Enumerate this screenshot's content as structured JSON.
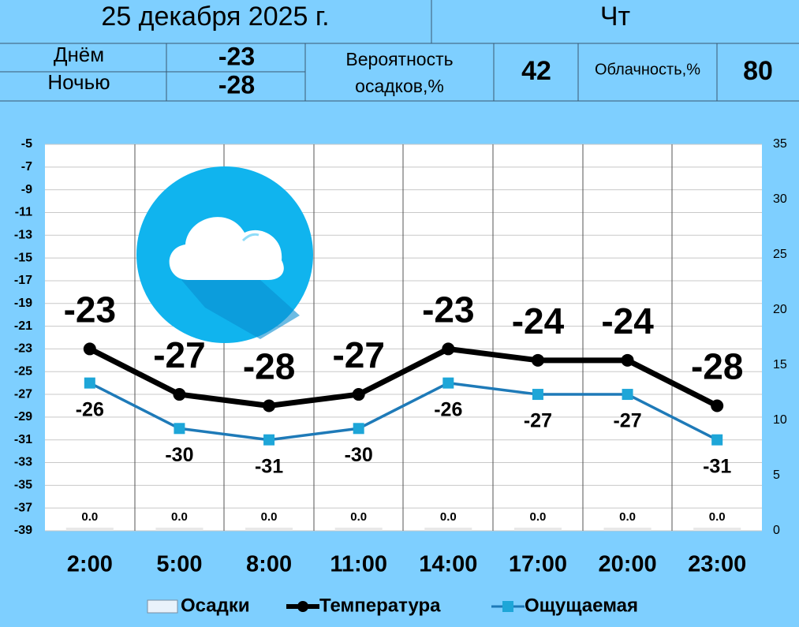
{
  "header": {
    "date": "25 декабря 2025 г.",
    "weekday": "Чт",
    "day_label": "Днём",
    "day_value": -23,
    "night_label": "Ночью",
    "night_value": -28,
    "precip_label": "Вероятность осадков,%",
    "precip_value": 42,
    "cloud_label": "Облачность,%",
    "cloud_value": 80
  },
  "chart_data": {
    "type": "line",
    "categories": [
      "2:00",
      "5:00",
      "8:00",
      "11:00",
      "14:00",
      "17:00",
      "20:00",
      "23:00"
    ],
    "series": [
      {
        "name": "Осадки",
        "type": "bar",
        "axis": "y2",
        "color": "#d9d9d9",
        "values": [
          0,
          0,
          0,
          0,
          0,
          0,
          0,
          0
        ],
        "value_labels": [
          "0.0",
          "0.0",
          "0.0",
          "0.0",
          "0.0",
          "0.0",
          "0.0",
          "0.0"
        ]
      },
      {
        "name": "Температура",
        "type": "line",
        "color": "#000000",
        "values": [
          -23,
          -27,
          -28,
          -27,
          -23,
          -24,
          -24,
          -28
        ]
      },
      {
        "name": "Ощущаемая",
        "type": "line",
        "color": "#1e7ab8",
        "values": [
          -26,
          -30,
          -31,
          -30,
          -26,
          -27,
          -27,
          -31
        ]
      }
    ],
    "ylim": [
      -39,
      -5
    ],
    "yticks": [
      -5,
      -7,
      -9,
      -11,
      -13,
      -15,
      -17,
      -19,
      -21,
      -23,
      -25,
      -27,
      -29,
      -31,
      -33,
      -35,
      -37,
      -39
    ],
    "y2lim": [
      0,
      35
    ],
    "y2ticks": [
      0,
      5,
      10,
      15,
      20,
      25,
      30,
      35
    ],
    "grid": true,
    "legend": "bottom"
  }
}
